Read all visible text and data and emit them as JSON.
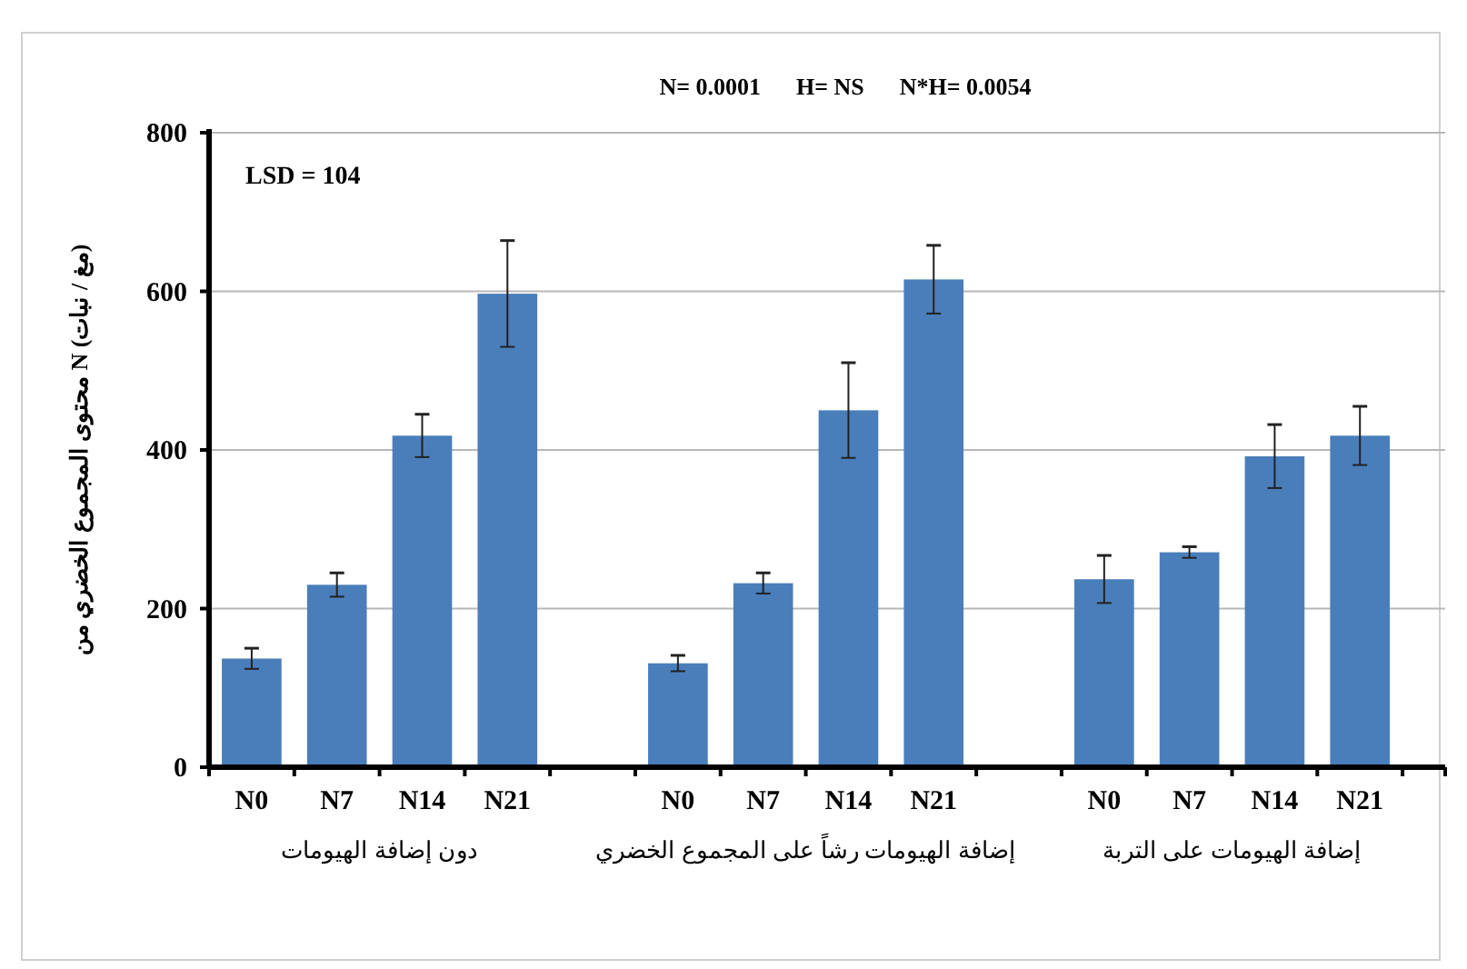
{
  "chart_data": {
    "type": "bar",
    "title": "N= 0.0001      H= NS      N*H= 0.0054",
    "ylabel": "محتوى المجموع الخضري من N (مغ / نبات)",
    "categories": [
      "N0",
      "N7",
      "N14",
      "N21",
      null,
      "N0",
      "N7",
      "N14",
      "N21",
      null,
      "N0",
      "N7",
      "N14",
      "N21"
    ],
    "series": [
      {
        "color": "#4a7ebb",
        "values": [
          137,
          230,
          418,
          597,
          null,
          131,
          232,
          450,
          615,
          null,
          237,
          271,
          392,
          418
        ],
        "errors": [
          13,
          15,
          27,
          67,
          null,
          10,
          13,
          60,
          43,
          null,
          30,
          7,
          40,
          37
        ]
      }
    ],
    "annotations": [
      "LSD = 104",
      "دون إضافة الهيومات",
      "إضافة الهيومات رشاً على المجموع الخضري",
      "إضافة الهيومات على التربة"
    ],
    "ylim": [
      0,
      800
    ],
    "yticks": [
      0,
      200,
      400,
      600,
      800
    ],
    "grid": "y"
  }
}
